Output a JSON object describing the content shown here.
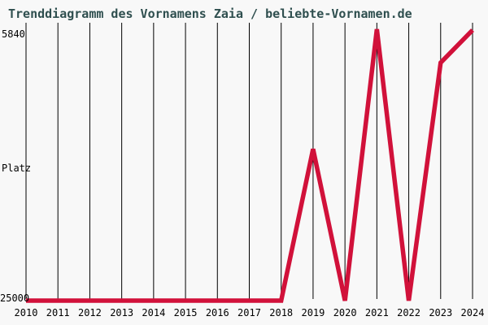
{
  "title": "Trenddiagramm des Vornamens Zaia / beliebte-Vornamen.de",
  "colors": {
    "background": "#f8f8f8",
    "line": "#d1113a",
    "grid": "#000000",
    "title_text": "#2f4f4f",
    "tick_text": "#000000"
  },
  "y_axis": {
    "label": "Platz",
    "ticks": [
      "5840",
      "25000"
    ]
  },
  "x_axis": {
    "ticks": [
      "2010",
      "2011",
      "2012",
      "2013",
      "2014",
      "2015",
      "2016",
      "2017",
      "2018",
      "2019",
      "2020",
      "2021",
      "2022",
      "2023",
      "2024"
    ]
  },
  "chart_data": {
    "type": "line",
    "title": "Trenddiagramm des Vornamens Zaia / beliebte-Vornamen.de",
    "x": [
      2010,
      2011,
      2012,
      2013,
      2014,
      2015,
      2016,
      2017,
      2018,
      2019,
      2020,
      2021,
      2022,
      2023,
      2024
    ],
    "series": [
      {
        "name": "Platz",
        "values": [
          25000,
          25000,
          25000,
          25000,
          25000,
          25000,
          25000,
          25000,
          25000,
          14300,
          25000,
          5840,
          25000,
          8200,
          5900
        ]
      }
    ],
    "xlabel": "",
    "ylabel": "Platz",
    "ylim": [
      25000,
      5840
    ],
    "y_axis_inverted": true,
    "xlim": [
      2010,
      2024
    ],
    "grid": "vertical",
    "legend": "none",
    "line_color": "#d1113a"
  }
}
